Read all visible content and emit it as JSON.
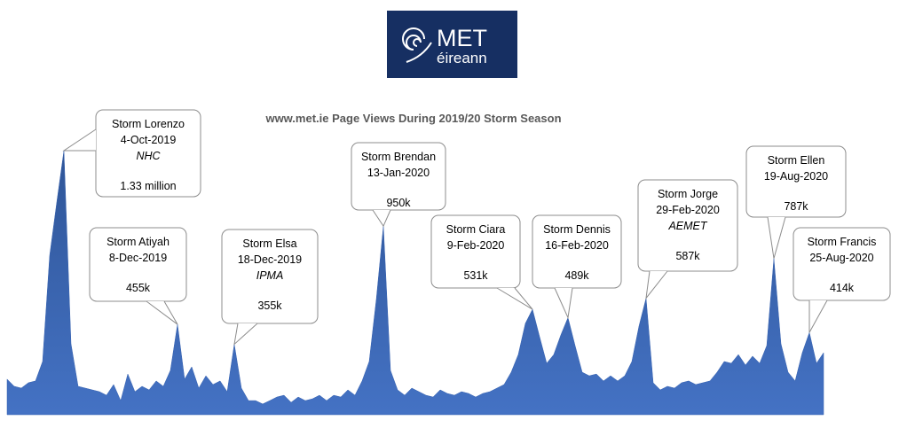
{
  "logo": {
    "title": "MET",
    "subtitle": "éireann"
  },
  "chart_data": {
    "type": "area",
    "title": "www.met.ie Page Views During 2019/20 Storm Season",
    "color": "#3561b0",
    "values": [
      179000,
      143000,
      134000,
      161000,
      170000,
      268000,
      803000,
      1071000,
      1330000,
      357000,
      143000,
      134000,
      125000,
      116000,
      98000,
      152000,
      71000,
      205000,
      116000,
      143000,
      125000,
      170000,
      143000,
      223000,
      455000,
      179000,
      241000,
      134000,
      196000,
      152000,
      170000,
      116000,
      355000,
      134000,
      71000,
      71000,
      54000,
      71000,
      89000,
      98000,
      62000,
      89000,
      71000,
      80000,
      98000,
      71000,
      98000,
      89000,
      125000,
      98000,
      170000,
      268000,
      580000,
      950000,
      223000,
      125000,
      98000,
      134000,
      116000,
      98000,
      89000,
      125000,
      107000,
      98000,
      116000,
      107000,
      89000,
      107000,
      116000,
      134000,
      152000,
      214000,
      303000,
      460000,
      531000,
      393000,
      259000,
      303000,
      402000,
      489000,
      348000,
      214000,
      196000,
      205000,
      170000,
      196000,
      170000,
      196000,
      268000,
      446000,
      587000,
      161000,
      125000,
      143000,
      134000,
      161000,
      170000,
      152000,
      161000,
      170000,
      214000,
      268000,
      259000,
      303000,
      250000,
      295000,
      259000,
      348000,
      787000,
      357000,
      214000,
      170000,
      312000,
      414000,
      259000,
      312000
    ],
    "annotations": [
      {
        "name": "Storm Lorenzo",
        "date": "4-Oct-2019",
        "agency": "NHC",
        "value": 1330000,
        "value_label": "1.33 million"
      },
      {
        "name": "Storm Atiyah",
        "date": "8-Dec-2019",
        "value": 455000,
        "value_label": "455k"
      },
      {
        "name": "Storm Elsa",
        "date": "18-Dec-2019",
        "agency": "IPMA",
        "value": 355000,
        "value_label": "355k"
      },
      {
        "name": "Storm Brendan",
        "date": "13-Jan-2020",
        "value": 950000,
        "value_label": "950k"
      },
      {
        "name": "Storm Ciara",
        "date": "9-Feb-2020",
        "value": 531000,
        "value_label": "531k"
      },
      {
        "name": "Storm Dennis",
        "date": "16-Feb-2020",
        "value": 489000,
        "value_label": "489k"
      },
      {
        "name": "Storm Jorge",
        "date": "29-Feb-2020",
        "agency": "AEMET",
        "value": 587000,
        "value_label": "587k"
      },
      {
        "name": "Storm Ellen",
        "date": "19-Aug-2020",
        "value": 787000,
        "value_label": "787k"
      },
      {
        "name": "Storm Francis",
        "date": "25-Aug-2020",
        "value": 414000,
        "value_label": "414k"
      }
    ]
  }
}
